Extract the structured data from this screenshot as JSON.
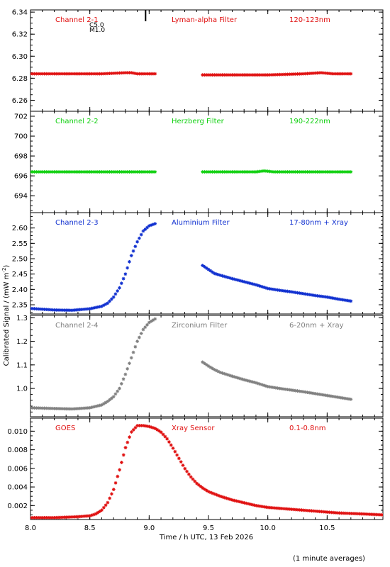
{
  "figure": {
    "ylabel": "Calibrated Signal / (mW m",
    "ylabel_sup": "-2",
    "ylabel_tail": ")",
    "xlabel": "Time / h UTC, 13 Feb 2026",
    "footnote": "(1 minute averages)",
    "xlim": [
      8.0,
      10.97
    ],
    "xticks": [
      "8.0",
      "8.5",
      "9.0",
      "9.5",
      "10.0",
      "10.5"
    ],
    "event_marker": {
      "x": 8.97,
      "labels": [
        "C5.0",
        "M1.0"
      ]
    }
  },
  "chart_data": [
    {
      "type": "scatter",
      "channel": "Channel 2-1",
      "filter": "Lyman-alpha Filter",
      "band": "120-123nm",
      "color": "#e01010",
      "ylim": [
        6.25,
        6.342
      ],
      "yticks": [
        "6.26",
        "6.28",
        "6.30",
        "6.32",
        "6.34"
      ],
      "series": [
        {
          "x": [
            8.0,
            8.3,
            8.6,
            8.8,
            8.85,
            8.9,
            9.05
          ],
          "y": [
            6.284,
            6.284,
            6.284,
            6.285,
            6.285,
            6.284,
            6.284
          ]
        },
        {
          "x": [
            9.45,
            9.7,
            10.0,
            10.3,
            10.45,
            10.55,
            10.7
          ],
          "y": [
            6.283,
            6.283,
            6.283,
            6.284,
            6.285,
            6.284,
            6.284
          ]
        }
      ]
    },
    {
      "type": "scatter",
      "channel": "Channel 2-2",
      "filter": "Herzberg Filter",
      "band": "190-222nm",
      "color": "#10d010",
      "ylim": [
        692.3,
        702.5
      ],
      "yticks": [
        "694",
        "696",
        "698",
        "700",
        "702"
      ],
      "series": [
        {
          "x": [
            8.0,
            8.4,
            8.8,
            9.05
          ],
          "y": [
            696.4,
            696.4,
            696.4,
            696.4
          ]
        },
        {
          "x": [
            9.45,
            9.9,
            9.97,
            10.05,
            10.4,
            10.7
          ],
          "y": [
            696.4,
            696.4,
            696.5,
            696.4,
            696.4,
            696.4
          ]
        }
      ]
    },
    {
      "type": "scatter",
      "channel": "Channel 2-3",
      "filter": "Aluminium Filter",
      "band": "17-80nm + Xray",
      "color": "#1030d0",
      "ylim": [
        2.32,
        2.65
      ],
      "yticks": [
        "2.35",
        "2.40",
        "2.45",
        "2.50",
        "2.55",
        "2.60"
      ],
      "series": [
        {
          "x": [
            8.0,
            8.2,
            8.35,
            8.5,
            8.6,
            8.65,
            8.7,
            8.75,
            8.8,
            8.85,
            8.9,
            8.95,
            9.0,
            9.05
          ],
          "y": [
            2.338,
            2.333,
            2.332,
            2.337,
            2.345,
            2.355,
            2.375,
            2.405,
            2.45,
            2.51,
            2.555,
            2.59,
            2.607,
            2.614
          ]
        },
        {
          "x": [
            9.45,
            9.5,
            9.55,
            9.6,
            9.7,
            9.8,
            9.9,
            10.0,
            10.1,
            10.2,
            10.3,
            10.4,
            10.5,
            10.6,
            10.7
          ],
          "y": [
            2.478,
            2.465,
            2.452,
            2.446,
            2.435,
            2.425,
            2.415,
            2.403,
            2.397,
            2.392,
            2.386,
            2.38,
            2.375,
            2.368,
            2.362
          ]
        }
      ]
    },
    {
      "type": "scatter",
      "channel": "Channel 2-4",
      "filter": "Zirconium Filter",
      "band": "6-20nm + Xray",
      "color": "#808080",
      "ylim": [
        0.88,
        1.31
      ],
      "yticks": [
        "1.0",
        "1.1",
        "1.2",
        "1.3"
      ],
      "series": [
        {
          "x": [
            8.0,
            8.2,
            8.35,
            8.5,
            8.6,
            8.65,
            8.7,
            8.75,
            8.8,
            8.85,
            8.9,
            8.95,
            9.0,
            9.05
          ],
          "y": [
            0.918,
            0.915,
            0.913,
            0.918,
            0.93,
            0.945,
            0.965,
            1.0,
            1.06,
            1.13,
            1.2,
            1.25,
            1.28,
            1.295
          ]
        },
        {
          "x": [
            9.45,
            9.5,
            9.55,
            9.6,
            9.7,
            9.8,
            9.9,
            10.0,
            10.1,
            10.2,
            10.3,
            10.4,
            10.5,
            10.6,
            10.7
          ],
          "y": [
            1.112,
            1.095,
            1.08,
            1.068,
            1.052,
            1.037,
            1.024,
            1.008,
            1.0,
            0.993,
            0.986,
            0.978,
            0.97,
            0.962,
            0.954
          ]
        }
      ]
    },
    {
      "type": "scatter",
      "channel": "GOES",
      "filter": "Xray Sensor",
      "band": "0.1-0.8nm",
      "color": "#e01010",
      "ylim": [
        0.0005,
        0.0114
      ],
      "yticks": [
        "0.002",
        "0.004",
        "0.006",
        "0.008",
        "0.010"
      ],
      "series": [
        {
          "x": [
            8.0,
            8.2,
            8.4,
            8.5,
            8.55,
            8.6,
            8.65,
            8.7,
            8.75,
            8.8,
            8.85,
            8.9,
            8.95,
            9.0,
            9.05,
            9.1,
            9.15,
            9.2,
            9.25,
            9.3,
            9.35,
            9.4,
            9.45,
            9.5,
            9.6,
            9.7,
            9.8,
            9.9,
            10.0,
            10.2,
            10.4,
            10.6,
            10.8,
            10.97
          ],
          "y": [
            0.0007,
            0.0007,
            0.0008,
            0.0009,
            0.0011,
            0.0015,
            0.0023,
            0.0037,
            0.0058,
            0.0082,
            0.0099,
            0.0106,
            0.0106,
            0.0105,
            0.0103,
            0.0099,
            0.0092,
            0.0082,
            0.0071,
            0.006,
            0.0051,
            0.0044,
            0.0039,
            0.0035,
            0.003,
            0.0026,
            0.0023,
            0.002,
            0.0018,
            0.0016,
            0.0014,
            0.0012,
            0.0011,
            0.001
          ]
        }
      ]
    }
  ]
}
